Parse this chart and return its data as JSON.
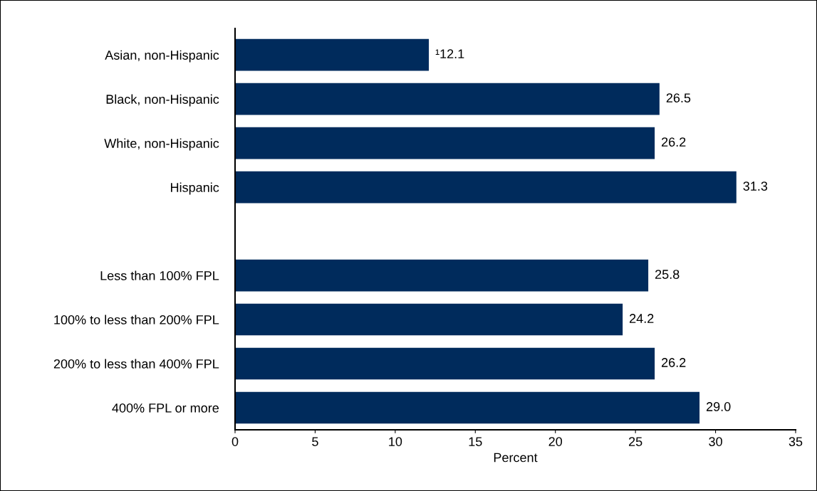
{
  "chart_data": {
    "type": "bar",
    "orientation": "horizontal",
    "xlabel": "Percent",
    "categories": [
      "Asian, non-Hispanic",
      "Black, non-Hispanic",
      "White, non-Hispanic",
      "Hispanic",
      null,
      "Less than 100% FPL",
      "100% to less than 200% FPL",
      "200% to less than 400% FPL",
      "400% FPL or more"
    ],
    "values": [
      12.1,
      26.5,
      26.2,
      31.3,
      null,
      25.8,
      24.2,
      26.2,
      29.0
    ],
    "value_labels": [
      "¹12.1",
      "26.5",
      "26.2",
      "31.3",
      null,
      "25.8",
      "24.2",
      "26.2",
      "29.0"
    ],
    "color": "#002b5c",
    "xlim": [
      0,
      35
    ],
    "xticks": [
      0,
      5,
      10,
      15,
      20,
      25,
      30,
      35
    ],
    "grid": false
  }
}
